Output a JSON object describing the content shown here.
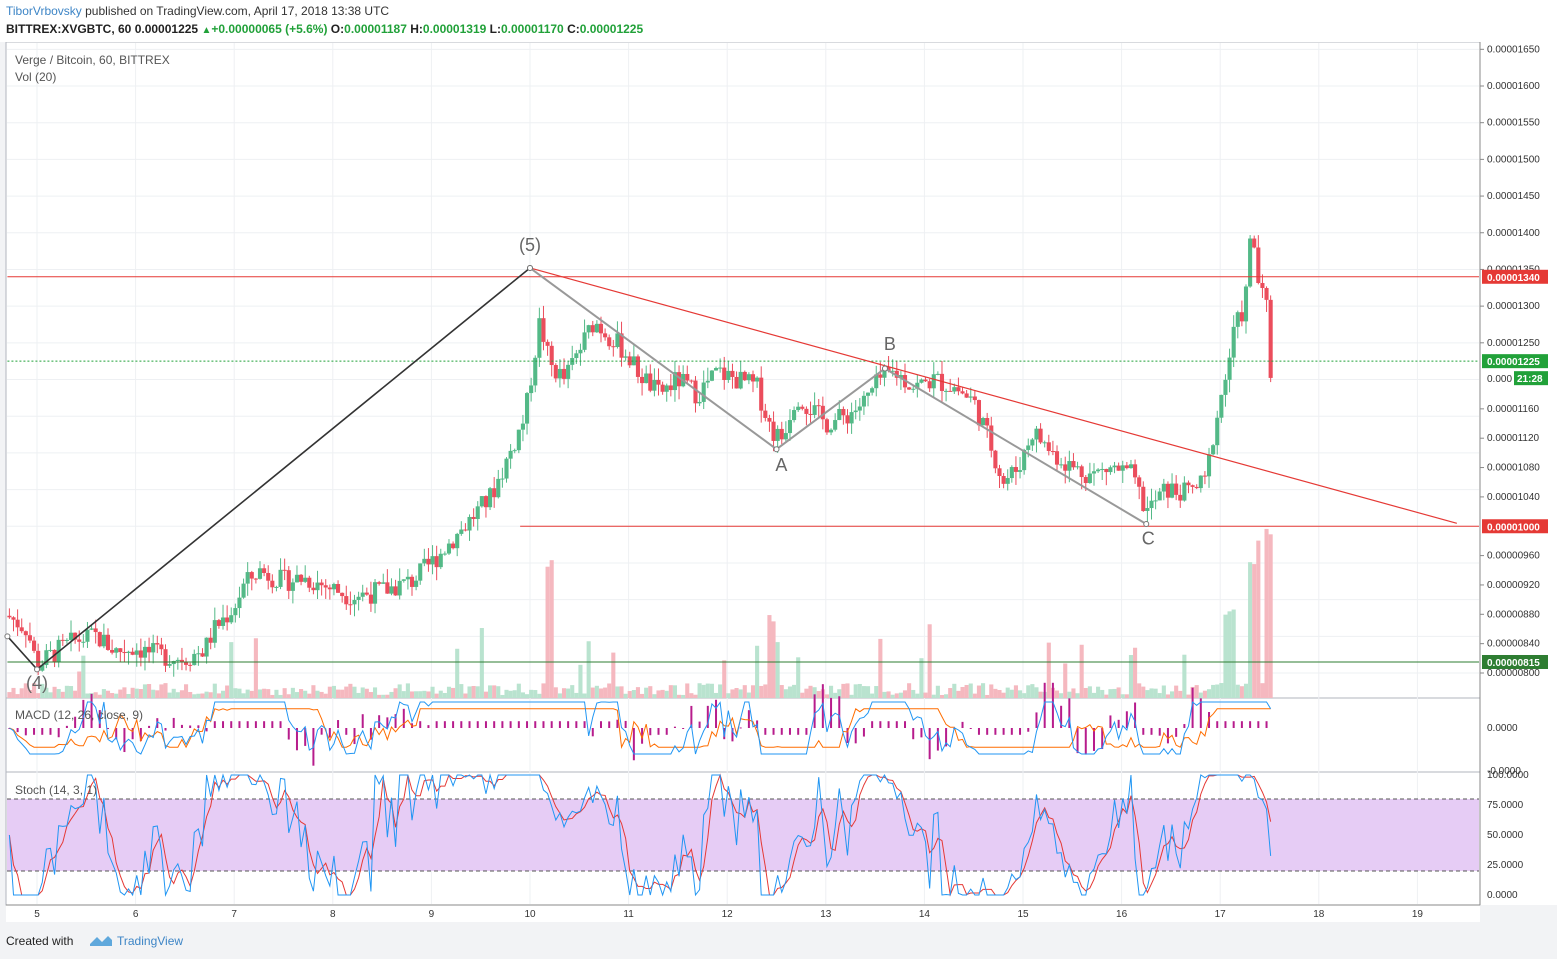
{
  "header": {
    "author": "TiborVrbovsky",
    "published_text": " published on TradingView.com, April 17, 2018 13:38 UTC",
    "symbol": "BITTREX:XVGBTC, 60",
    "change": "+0.00000065 (+5.6%)",
    "last": "0.00001225",
    "o_label": "O:",
    "o": "0.00001187",
    "h_label": "H:",
    "h": "0.00001319",
    "l_label": "L:",
    "l": "0.00001170",
    "c_label": "C:",
    "c": "0.00001225"
  },
  "panes": {
    "main_title": "Verge / Bitcoin, 60, BITTREX",
    "vol_title": "Vol (20)",
    "macd_title": "MACD (12, 26, close, 9)",
    "stoch_title": "Stoch (14, 3, 1)"
  },
  "footer": {
    "created_with": "Created with",
    "brand": "TradingView"
  },
  "colors": {
    "up": "#53b987",
    "down": "#eb4d5c",
    "resistance": "#e53935",
    "support_green": "#2e7d32",
    "wave_line": "#333333",
    "abc_line": "#999999",
    "stoch_fill": "#e6ccf5",
    "macd_line": "#2196f3",
    "signal_line": "#ff6d00",
    "hist": "#b71c8c"
  },
  "chart_data": {
    "type": "candlestick",
    "title": "Verge / Bitcoin, 60, BITTREX",
    "x_ticks": [
      "5",
      "6",
      "7",
      "8",
      "9",
      "10",
      "11",
      "12",
      "13",
      "14",
      "15",
      "16",
      "17",
      "18",
      "19"
    ],
    "y_ticks": [
      "0.00001650",
      "0.00001600",
      "0.00001550",
      "0.00001500",
      "0.00001450",
      "0.00001400",
      "0.00001350",
      "0.00001300",
      "0.00001250",
      "0.00001160",
      "0.00001120",
      "0.00001080",
      "0.00001040",
      "0.00000960",
      "0.00000920",
      "0.00000880",
      "0.00000840",
      "0.00000800"
    ],
    "price_tags": [
      {
        "label": "0.00001340",
        "value": 1.34e-05,
        "color": "#e53935"
      },
      {
        "label": "0.00001225",
        "value": 1.225e-05,
        "color": "#21a139"
      },
      {
        "label": "0.00001000",
        "value": 1e-05,
        "color": "#e53935"
      },
      {
        "label": "0.00000815",
        "value": 8.15e-06,
        "color": "#2e7d32"
      }
    ],
    "countdown": {
      "label": "21:28",
      "partial_label": "0.000"
    },
    "horizontal_lines": [
      {
        "value": 1.34e-05,
        "color": "#e53935",
        "from_day": 4.7,
        "to_day": 19.6
      },
      {
        "value": 1.225e-05,
        "color": "#21a139",
        "style": "dotted",
        "from_day": 4.7,
        "to_day": 19.6
      },
      {
        "value": 1e-05,
        "color": "#e53935",
        "from_day": 9.9,
        "to_day": 19.6
      },
      {
        "value": 8.15e-06,
        "color": "#2e7d32",
        "from_day": 4.7,
        "to_day": 19.6
      }
    ],
    "trendline": {
      "from": {
        "day": 10.0,
        "price": 1.352e-05
      },
      "to": {
        "day": 19.4,
        "price": 1.004e-05
      }
    },
    "wave_path": [
      {
        "day": 4.7,
        "price": 8.5e-06
      },
      {
        "day": 5.0,
        "price": 8.05e-06
      },
      {
        "day": 10.0,
        "price": 1.352e-05
      }
    ],
    "abc_path": [
      {
        "day": 10.0,
        "price": 1.352e-05
      },
      {
        "day": 12.5,
        "price": 1.105e-05
      },
      {
        "day": 13.6,
        "price": 1.215e-05
      },
      {
        "day": 16.25,
        "price": 1.003e-05
      }
    ],
    "wave_labels": [
      {
        "text": "(4)",
        "day": 5.0,
        "price": 7.78e-06
      },
      {
        "text": "(5)",
        "day": 10.0,
        "price": 1.375e-05
      },
      {
        "text": "A",
        "day": 12.55,
        "price": 1.075e-05
      },
      {
        "text": "B",
        "day": 13.65,
        "price": 1.24e-05
      },
      {
        "text": "C",
        "day": 16.27,
        "price": 9.75e-06
      }
    ],
    "price_path": [
      [
        4.7,
        8.78e-06
      ],
      [
        4.9,
        8.6e-06
      ],
      [
        5.0,
        8.1e-06
      ],
      [
        5.2,
        8.3e-06
      ],
      [
        5.4,
        8.45e-06
      ],
      [
        5.6,
        8.5e-06
      ],
      [
        5.8,
        8.3e-06
      ],
      [
        6.0,
        8.35e-06
      ],
      [
        6.2,
        8.25e-06
      ],
      [
        6.5,
        8.2e-06
      ],
      [
        6.7,
        8.32e-06
      ],
      [
        6.8,
        8.6e-06
      ],
      [
        7.0,
        8.9e-06
      ],
      [
        7.1,
        9.2e-06
      ],
      [
        7.25,
        9.4e-06
      ],
      [
        7.5,
        9.25e-06
      ],
      [
        7.7,
        9.3e-06
      ],
      [
        8.0,
        9.15e-06
      ],
      [
        8.2,
        9.05e-06
      ],
      [
        8.5,
        9.12e-06
      ],
      [
        8.8,
        9.25e-06
      ],
      [
        9.0,
        9.5e-06
      ],
      [
        9.2,
        9.8e-06
      ],
      [
        9.4,
        1.01e-05
      ],
      [
        9.6,
        1.04e-05
      ],
      [
        9.8,
        1.1e-05
      ],
      [
        9.95,
        1.15e-05
      ],
      [
        10.1,
        1.28e-05
      ],
      [
        10.2,
        1.22e-05
      ],
      [
        10.35,
        1.2e-05
      ],
      [
        10.5,
        1.24e-05
      ],
      [
        10.65,
        1.28e-05
      ],
      [
        10.8,
        1.26e-05
      ],
      [
        10.95,
        1.24e-05
      ],
      [
        11.1,
        1.21e-05
      ],
      [
        11.3,
        1.18e-05
      ],
      [
        11.5,
        1.2e-05
      ],
      [
        11.7,
        1.18e-05
      ],
      [
        11.9,
        1.21e-05
      ],
      [
        12.1,
        1.2e-05
      ],
      [
        12.3,
        1.19e-05
      ],
      [
        12.45,
        1.13e-05
      ],
      [
        12.55,
        1.12e-05
      ],
      [
        12.7,
        1.18e-05
      ],
      [
        12.85,
        1.16e-05
      ],
      [
        13.0,
        1.14e-05
      ],
      [
        13.2,
        1.15e-05
      ],
      [
        13.4,
        1.17e-05
      ],
      [
        13.55,
        1.2e-05
      ],
      [
        13.7,
        1.21e-05
      ],
      [
        13.9,
        1.19e-05
      ],
      [
        14.1,
        1.2e-05
      ],
      [
        14.3,
        1.19e-05
      ],
      [
        14.5,
        1.17e-05
      ],
      [
        14.65,
        1.12e-05
      ],
      [
        14.8,
        1.06e-05
      ],
      [
        14.95,
        1.08e-05
      ],
      [
        15.1,
        1.13e-05
      ],
      [
        15.3,
        1.1e-05
      ],
      [
        15.5,
        1.08e-05
      ],
      [
        15.7,
        1.07e-05
      ],
      [
        15.9,
        1.08e-05
      ],
      [
        16.1,
        1.07e-05
      ],
      [
        16.25,
        1.02e-05
      ],
      [
        16.45,
        1.05e-05
      ],
      [
        16.65,
        1.045e-05
      ],
      [
        16.85,
        1.06e-05
      ],
      [
        16.95,
        1.14e-05
      ],
      [
        17.05,
        1.2e-05
      ],
      [
        17.15,
        1.27e-05
      ],
      [
        17.25,
        1.3e-05
      ],
      [
        17.32,
        1.41e-05
      ],
      [
        17.4,
        1.32e-05
      ],
      [
        17.47,
        1.3e-05
      ],
      [
        17.52,
        1.19e-05
      ],
      [
        17.55,
        1.225e-05
      ]
    ],
    "volume_spikes": [
      {
        "day": 10.2,
        "value": 0.8
      },
      {
        "day": 12.45,
        "value": 0.45
      },
      {
        "day": 17.1,
        "value": 0.5
      },
      {
        "day": 17.35,
        "value": 0.8
      },
      {
        "day": 17.5,
        "value": 1.0
      }
    ],
    "macd": {
      "y_ticks": [
        "0.0000",
        "-0.0000"
      ]
    },
    "stoch": {
      "y_ticks": [
        "100.0000",
        "75.0000",
        "50.0000",
        "25.0000",
        "0.0000"
      ],
      "upper": 80,
      "lower": 20
    }
  }
}
